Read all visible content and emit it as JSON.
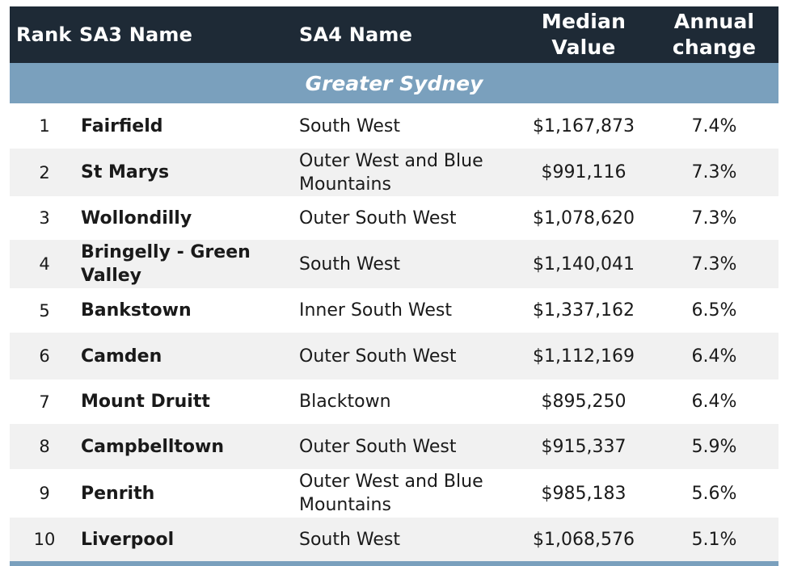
{
  "table": {
    "headers": {
      "rank": "Rank",
      "sa3": "SA3 Name",
      "sa4": "SA4 Name",
      "median_line1": "Median",
      "median_line2": "Value",
      "change_line1": "Annual",
      "change_line2": "change"
    },
    "region": "Greater Sydney",
    "rows": [
      {
        "rank": "1",
        "sa3": "Fairfield",
        "sa4": "South West",
        "median": "$1,167,873",
        "change": "7.4%"
      },
      {
        "rank": "2",
        "sa3": "St Marys",
        "sa4": "Outer West and Blue Mountains",
        "median": "$991,116",
        "change": "7.3%"
      },
      {
        "rank": "3",
        "sa3": "Wollondilly",
        "sa4": "Outer South West",
        "median": "$1,078,620",
        "change": "7.3%"
      },
      {
        "rank": "4",
        "sa3": "Bringelly - Green Valley",
        "sa4": "South West",
        "median": "$1,140,041",
        "change": "7.3%"
      },
      {
        "rank": "5",
        "sa3": "Bankstown",
        "sa4": "Inner South West",
        "median": "$1,337,162",
        "change": "6.5%"
      },
      {
        "rank": "6",
        "sa3": "Camden",
        "sa4": "Outer South West",
        "median": "$1,112,169",
        "change": "6.4%"
      },
      {
        "rank": "7",
        "sa3": "Mount Druitt",
        "sa4": "Blacktown",
        "median": "$895,250",
        "change": "6.4%"
      },
      {
        "rank": "8",
        "sa3": "Campbelltown",
        "sa4": "Outer South West",
        "median": "$915,337",
        "change": "5.9%"
      },
      {
        "rank": "9",
        "sa3": "Penrith",
        "sa4": "Outer West and Blue Mountains",
        "median": "$985,183",
        "change": "5.6%"
      },
      {
        "rank": "10",
        "sa3": "Liverpool",
        "sa4": "South West",
        "median": "$1,068,576",
        "change": "5.1%"
      }
    ]
  },
  "colors": {
    "header_bg": "#1e2a36",
    "region_bg": "#7aa0bd",
    "alt_row_bg": "#f1f1f1"
  }
}
